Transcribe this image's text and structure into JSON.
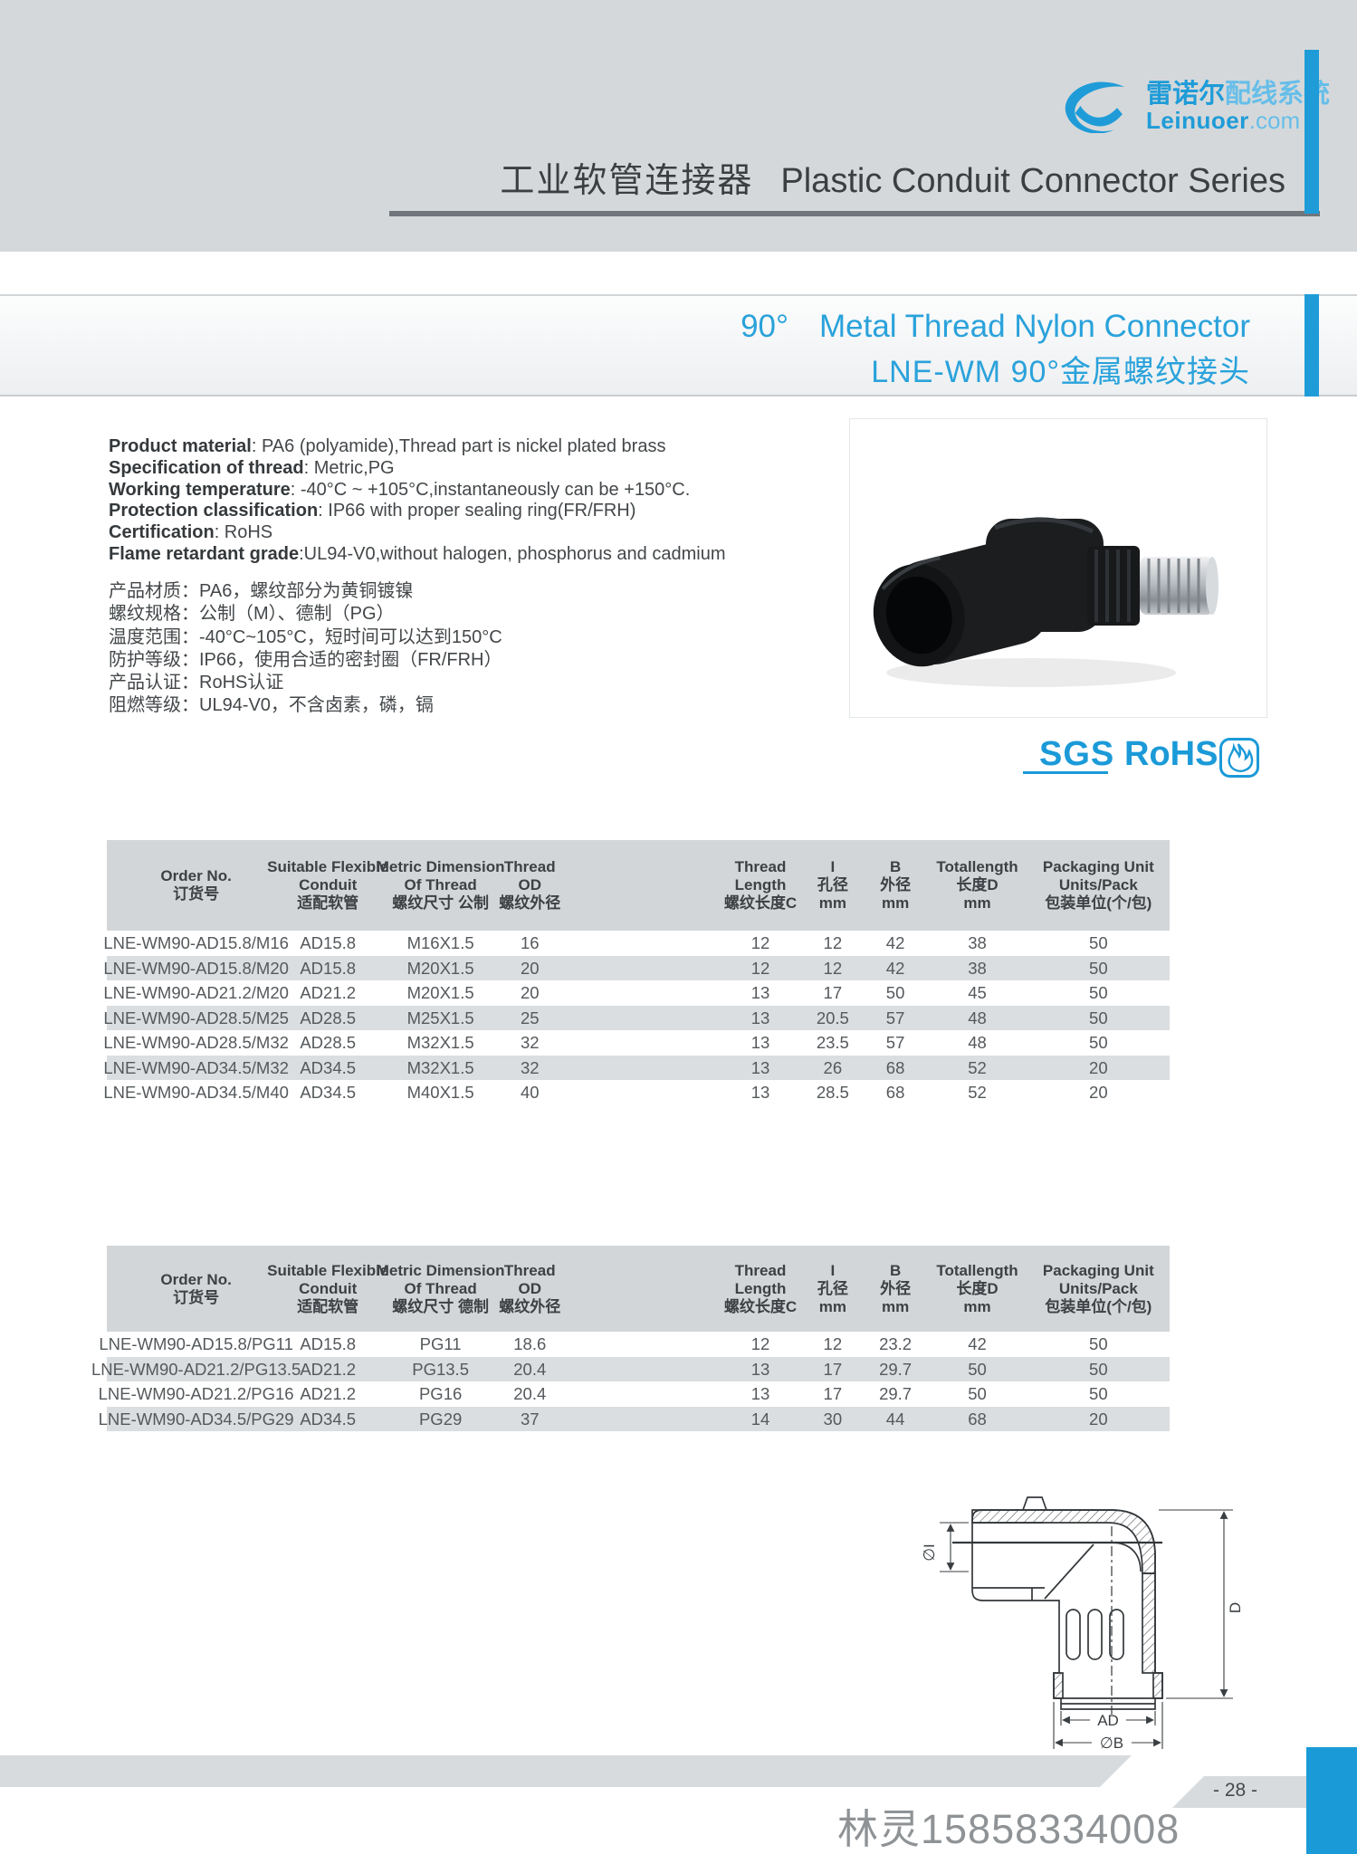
{
  "header": {
    "logo": {
      "cn_bold": "雷诺尔",
      "cn_light": "配线系统",
      "en_bold": "Leinuoer",
      "en_light": ".com"
    },
    "title_cn": "工业软管连接器",
    "title_en": "Plastic Conduit Connector Series"
  },
  "section": {
    "deg": "90°",
    "title_en": "Metal Thread Nylon Connector",
    "title_cn": "LNE-WM 90°金属螺纹接头"
  },
  "specs_en": [
    {
      "label": "Product material",
      "rest": ": PA6 (polyamide),Thread part is nickel plated brass"
    },
    {
      "label": "Specification of thread",
      "rest": ": Metric,PG"
    },
    {
      "label": "Working temperature",
      "rest": ": -40°C ~ +105°C,instantaneously can be +150°C."
    },
    {
      "label": "Protection classification",
      "rest": ": IP66 with proper sealing ring(FR/FRH)"
    },
    {
      "label": "Certification",
      "rest": ": RoHS"
    },
    {
      "label": "Flame retardant grade",
      "rest": ":UL94-V0,without halogen, phosphorus and cadmium"
    }
  ],
  "specs_cn": [
    "产品材质：PA6，螺纹部分为黄铜镀镍",
    "螺纹规格：公制（M）、德制（PG）",
    "温度范围：-40°C~105°C，短时间可以达到150°C",
    "防护等级：IP66，使用合适的密封圈（FR/FRH）",
    "产品认证：RoHS认证",
    "阻燃等级：UL94-V0，不含卤素，磷，镉"
  ],
  "certs": {
    "sgs": "SGS",
    "rohs": "RoHS",
    "flame_icon": "flame-icon"
  },
  "tables": [
    {
      "name": "metric-thread-table",
      "columns": [
        {
          "lines": [
            "Order No.",
            "订货号"
          ]
        },
        {
          "lines": [
            "Suitable Flexible",
            "Conduit",
            "适配软管"
          ]
        },
        {
          "lines": [
            "Metric Dimension",
            "Of Thread",
            "螺纹尺寸 公制"
          ]
        },
        {
          "lines": [
            "Thread",
            "OD",
            "螺纹外径"
          ]
        },
        {
          "lines": [
            "Thread",
            "Length",
            "螺纹长度C"
          ]
        },
        {
          "lines": [
            "I",
            "孔径",
            "mm"
          ]
        },
        {
          "lines": [
            "B",
            "外径",
            "mm"
          ]
        },
        {
          "lines": [
            "Totallength",
            "长度D",
            "mm"
          ]
        },
        {
          "lines": [
            "Packaging Unit",
            "Units/Pack",
            "包装单位(个/包)"
          ]
        }
      ],
      "rows": [
        [
          "LNE-WM90-AD15.8/M16",
          "AD15.8",
          "M16X1.5",
          "16",
          "12",
          "12",
          "42",
          "38",
          "50"
        ],
        [
          "LNE-WM90-AD15.8/M20",
          "AD15.8",
          "M20X1.5",
          "20",
          "12",
          "12",
          "42",
          "38",
          "50"
        ],
        [
          "LNE-WM90-AD21.2/M20",
          "AD21.2",
          "M20X1.5",
          "20",
          "13",
          "17",
          "50",
          "45",
          "50"
        ],
        [
          "LNE-WM90-AD28.5/M25",
          "AD28.5",
          "M25X1.5",
          "25",
          "13",
          "20.5",
          "57",
          "48",
          "50"
        ],
        [
          "LNE-WM90-AD28.5/M32",
          "AD28.5",
          "M32X1.5",
          "32",
          "13",
          "23.5",
          "57",
          "48",
          "50"
        ],
        [
          "LNE-WM90-AD34.5/M32",
          "AD34.5",
          "M32X1.5",
          "32",
          "13",
          "26",
          "68",
          "52",
          "20"
        ],
        [
          "LNE-WM90-AD34.5/M40",
          "AD34.5",
          "M40X1.5",
          "40",
          "13",
          "28.5",
          "68",
          "52",
          "20"
        ]
      ]
    },
    {
      "name": "pg-thread-table",
      "columns": [
        {
          "lines": [
            "Order No.",
            "订货号"
          ]
        },
        {
          "lines": [
            "Suitable Flexible",
            "Conduit",
            "适配软管"
          ]
        },
        {
          "lines": [
            "Metric Dimension",
            "Of Thread",
            "螺纹尺寸 德制"
          ]
        },
        {
          "lines": [
            "Thread",
            "OD",
            "螺纹外径"
          ]
        },
        {
          "lines": [
            "Thread",
            "Length",
            "螺纹长度C"
          ]
        },
        {
          "lines": [
            "I",
            "孔径",
            "mm"
          ]
        },
        {
          "lines": [
            "B",
            "外径",
            "mm"
          ]
        },
        {
          "lines": [
            "Totallength",
            "长度D",
            "mm"
          ]
        },
        {
          "lines": [
            "Packaging Unit",
            "Units/Pack",
            "包装单位(个/包)"
          ]
        }
      ],
      "rows": [
        [
          "LNE-WM90-AD15.8/PG11",
          "AD15.8",
          "PG11",
          "18.6",
          "12",
          "12",
          "23.2",
          "42",
          "50"
        ],
        [
          "LNE-WM90-AD21.2/PG13.5",
          "AD21.2",
          "PG13.5",
          "20.4",
          "13",
          "17",
          "29.7",
          "50",
          "50"
        ],
        [
          "LNE-WM90-AD21.2/PG16",
          "AD21.2",
          "PG16",
          "20.4",
          "13",
          "17",
          "29.7",
          "50",
          "50"
        ],
        [
          "LNE-WM90-AD34.5/PG29",
          "AD34.5",
          "PG29",
          "37",
          "14",
          "30",
          "44",
          "68",
          "20"
        ]
      ]
    }
  ],
  "drawing": {
    "labels": [
      "∅I",
      "D",
      "AD",
      "∅B"
    ]
  },
  "footer": {
    "page_number": "- 28 -",
    "watermark": "林灵15858334008"
  },
  "colors": {
    "accent_blue": "#1f9cd8",
    "header_band": "#d5d8da",
    "row_shade": "#dbdee0",
    "table_header_bg": "#d3d6d8"
  }
}
